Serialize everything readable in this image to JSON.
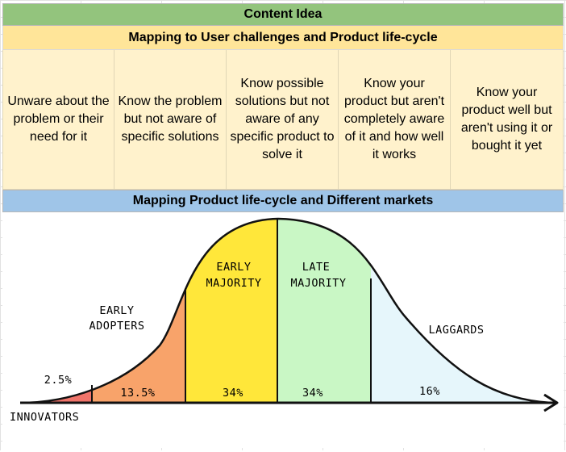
{
  "header": {
    "title": "Content Idea",
    "subtitle": "Mapping to User challenges and Product life-cycle"
  },
  "challenges": [
    "Unware about the problem or their need for it",
    "Know the problem but not aware of specific solutions",
    "Know possible solutions but not aware of any specific product to solve it",
    "Know your product but aren't completely aware of it and how well it works",
    "Know your product well but aren't using it or bought it yet"
  ],
  "markets_header": "Mapping Product life-cycle and Different markets",
  "diagram": {
    "segments": [
      {
        "name": "INNOVATORS",
        "percent": "2.5%",
        "color": "#f0746a"
      },
      {
        "name": "EARLY ADOPTERS",
        "name_lines": [
          "EARLY",
          "ADOPTERS"
        ],
        "percent": "13.5%",
        "color": "#f8a36a"
      },
      {
        "name": "EARLY MAJORITY",
        "name_lines": [
          "EARLY",
          "MAJORITY"
        ],
        "percent": "34%",
        "color": "#ffe73a"
      },
      {
        "name": "LATE MAJORITY",
        "name_lines": [
          "LATE",
          "MAJORITY"
        ],
        "percent": "34%",
        "color": "#c9f7c5"
      },
      {
        "name": "LAGGARDS",
        "percent": "16%",
        "color": "#e6f6fb"
      }
    ]
  }
}
